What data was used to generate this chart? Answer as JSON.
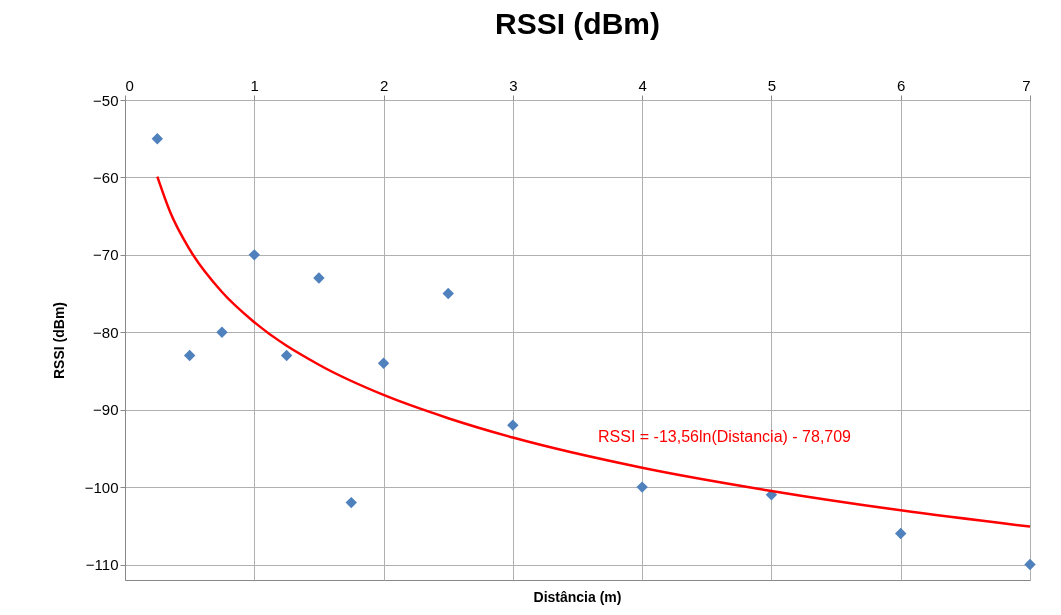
{
  "chart_data": {
    "type": "scatter",
    "title": "RSSI (dBm)",
    "xlabel": "Distância (m)",
    "ylabel": "RSSI (dBm)",
    "x": [
      0.25,
      0.5,
      0.75,
      1,
      1.25,
      1.5,
      1.75,
      2,
      2.5,
      3,
      4,
      5,
      6,
      7
    ],
    "series": [
      {
        "color": "#4f81bd",
        "marker": "diamond",
        "values": [
          -55,
          -83,
          -80,
          -70,
          -83,
          -73,
          -102,
          -84,
          -75,
          -92,
          -100,
          -101,
          -106,
          -110
        ]
      },
      {
        "type": "line",
        "color": "#ff0000",
        "x": [
          0.25,
          0.35,
          0.5,
          0.75,
          1,
          1.5,
          2,
          2.5,
          3,
          4,
          5,
          6,
          7
        ],
        "values": [
          -59.9,
          -64.5,
          -69.3,
          -74.8,
          -78.7,
          -84.2,
          -88.1,
          -91.1,
          -93.6,
          -97.5,
          -100.5,
          -103.0,
          -105.1
        ]
      }
    ],
    "annotations": [
      "RSSI = -13,56ln(Distancia) - 78,709"
    ],
    "xlim": [
      0,
      7
    ],
    "xticks": [
      0,
      1,
      2,
      3,
      4,
      5,
      6,
      7
    ],
    "ylim": [
      -112,
      -50
    ],
    "yticks": [
      -110,
      -100,
      -90,
      -80,
      -70,
      -60,
      -50
    ],
    "grid": true
  }
}
